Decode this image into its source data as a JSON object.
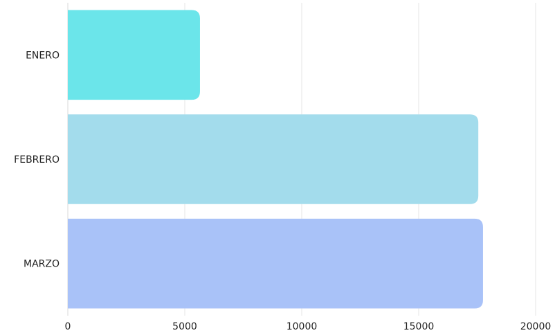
{
  "chart_data": {
    "type": "bar",
    "orientation": "horizontal",
    "categories": [
      "ENERO",
      "FEBRERO",
      "MARZO"
    ],
    "values": [
      5650,
      17550,
      17750
    ],
    "colors": [
      "#6BE5EA",
      "#A3DCEC",
      "#A9C2F8"
    ],
    "xlim": [
      0,
      20000
    ],
    "xticks": [
      0,
      5000,
      10000,
      15000,
      20000
    ],
    "xtick_labels": [
      "0",
      "5000",
      "10000",
      "15000",
      "20000"
    ],
    "grid": "vertical",
    "legend": "none"
  }
}
